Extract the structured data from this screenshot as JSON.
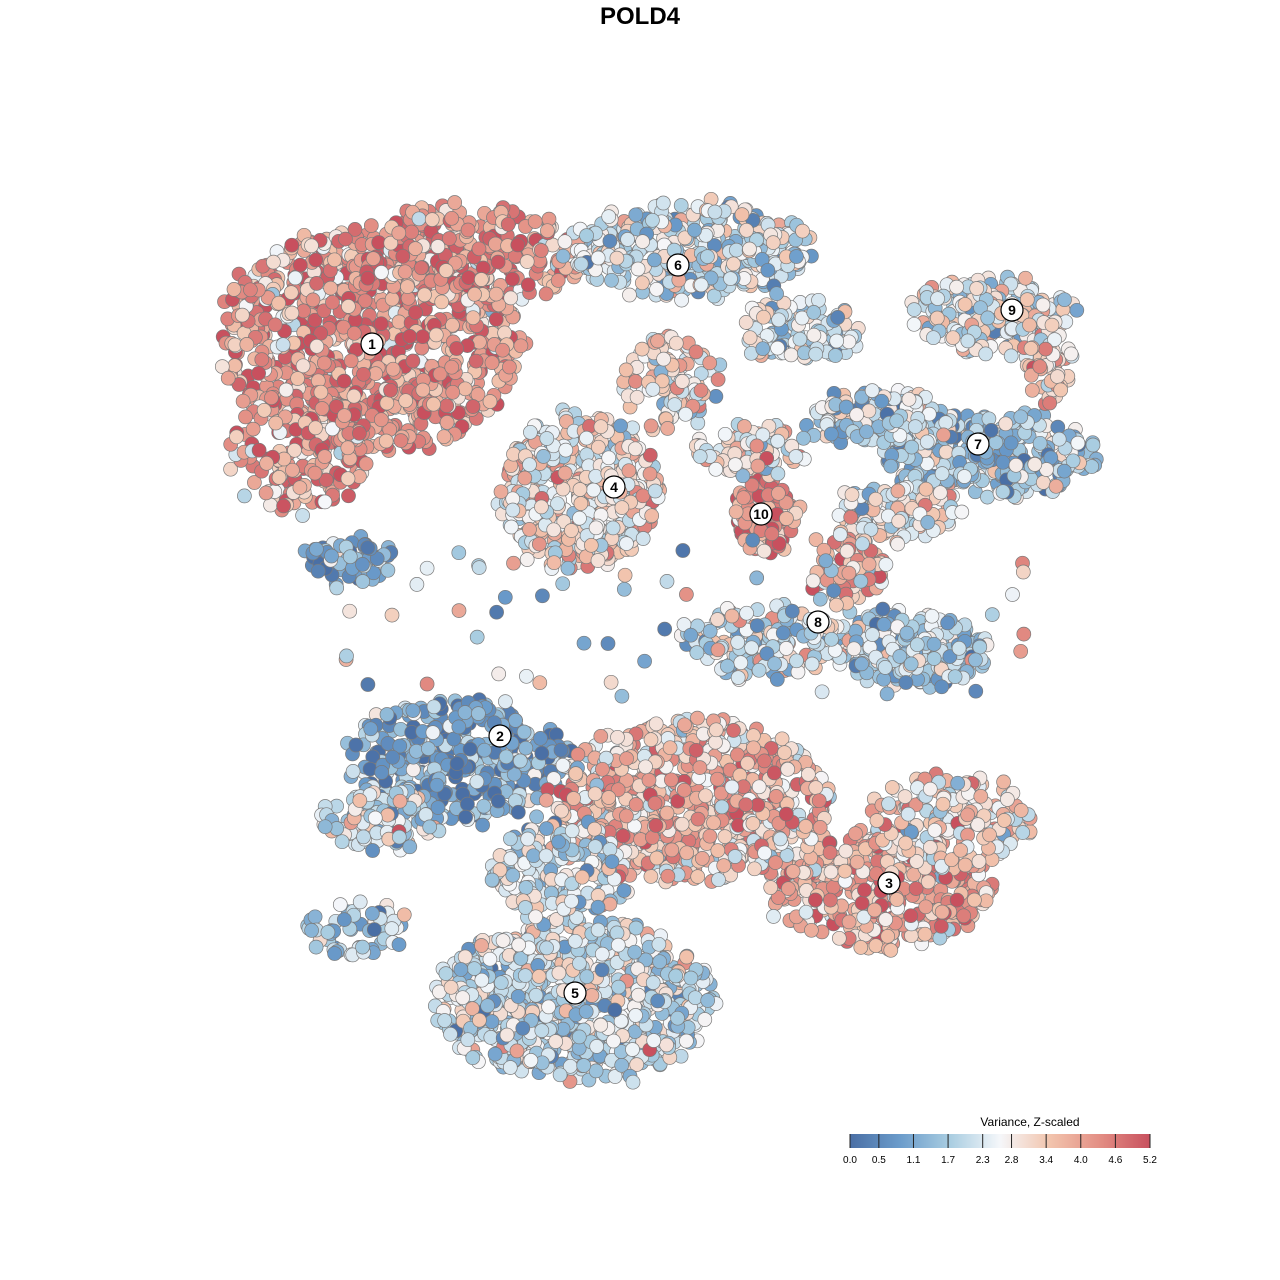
{
  "chart_data": {
    "type": "scatter",
    "title": "POLD4",
    "xlabel": "",
    "ylabel": "",
    "grid": false,
    "legend": {
      "title": "Variance, Z-scaled",
      "placement": "bottom-right",
      "ticks": [
        "0.0",
        "0.5",
        "1.1",
        "1.7",
        "2.3",
        "2.8",
        "3.4",
        "4.0",
        "4.6",
        "5.2"
      ],
      "range": [
        0.0,
        5.2
      ]
    },
    "color_scale": [
      "#4a6fa5",
      "#6b9ccb",
      "#a9cde1",
      "#f5f7fa",
      "#f2c4ad",
      "#e38e84",
      "#c8505e"
    ],
    "clusters": [
      {
        "label": "1",
        "center": [
          372,
          344
        ],
        "mean_value": 4.0
      },
      {
        "label": "2",
        "center": [
          500,
          736
        ],
        "mean_value": 1.0
      },
      {
        "label": "3",
        "center": [
          889,
          883
        ],
        "mean_value": 3.7
      },
      {
        "label": "4",
        "center": [
          614,
          487
        ],
        "mean_value": 3.0
      },
      {
        "label": "5",
        "center": [
          575,
          993
        ],
        "mean_value": 2.2
      },
      {
        "label": "6",
        "center": [
          678,
          265
        ],
        "mean_value": 2.2
      },
      {
        "label": "7",
        "center": [
          978,
          444
        ],
        "mean_value": 1.7
      },
      {
        "label": "8",
        "center": [
          818,
          622
        ],
        "mean_value": 2.4
      },
      {
        "label": "9",
        "center": [
          1012,
          310
        ],
        "mean_value": 2.4
      },
      {
        "label": "10",
        "center": [
          761,
          514
        ],
        "mean_value": 4.4
      }
    ]
  }
}
